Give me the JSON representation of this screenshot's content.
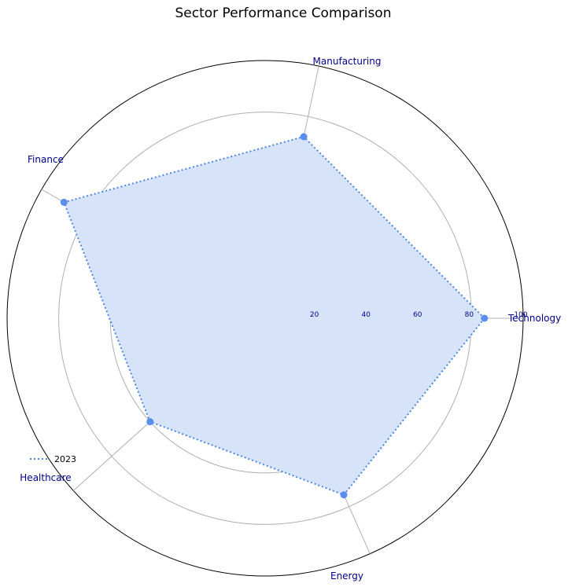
{
  "chart_data": {
    "type": "radar",
    "title": "Sector Performance Comparison",
    "categories": [
      "Technology",
      "Manufacturing",
      "Finance",
      "Healthcare",
      "Energy"
    ],
    "series": [
      {
        "name": "2023",
        "values": [
          85,
          72,
          90,
          60,
          75
        ]
      }
    ],
    "rlim": [
      0,
      100
    ],
    "r_ticks": [
      "20",
      "40",
      "60",
      "80",
      "100"
    ],
    "grid": true,
    "legend_position": "lower-left",
    "colors": {
      "series_line": "#4a86e8",
      "series_marker": "#5b8def",
      "series_fill": "#d7e3f8",
      "grid": "#b0b0b0",
      "outer_ring": "#000000",
      "label": "#00008b"
    }
  }
}
